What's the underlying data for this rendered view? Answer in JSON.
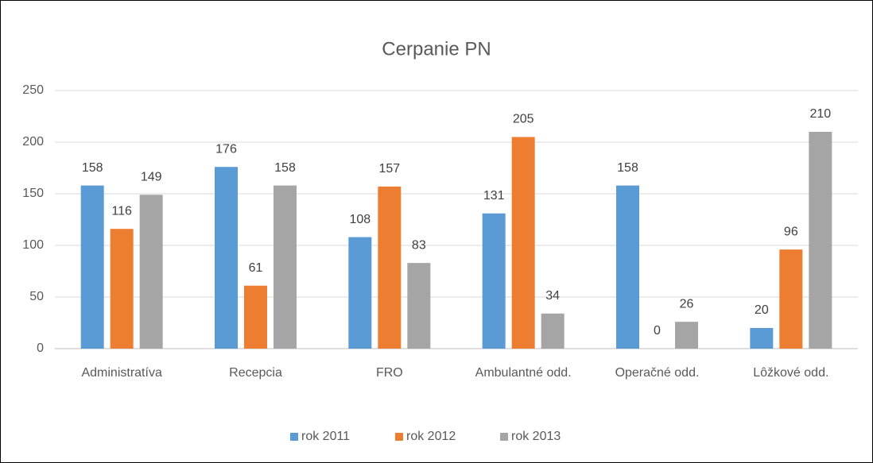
{
  "chart_data": {
    "type": "bar",
    "title": "Cerpanie PN",
    "categories": [
      "Administratíva",
      "Recepcia",
      "FRO",
      "Ambulantné odd.",
      "Operačné odd.",
      "Lôžkové odd."
    ],
    "series": [
      {
        "name": "rok 2011",
        "color": "#5b9bd5",
        "values": [
          158,
          176,
          108,
          131,
          158,
          20
        ]
      },
      {
        "name": "rok 2012",
        "color": "#ed7d31",
        "values": [
          116,
          61,
          157,
          205,
          0,
          96
        ]
      },
      {
        "name": "rok 2013",
        "color": "#a5a5a5",
        "values": [
          149,
          158,
          83,
          34,
          26,
          210
        ]
      }
    ],
    "ylim": [
      0,
      250
    ],
    "yticks": [
      0,
      50,
      100,
      150,
      200,
      250
    ],
    "grid": true,
    "legend": "bottom"
  }
}
